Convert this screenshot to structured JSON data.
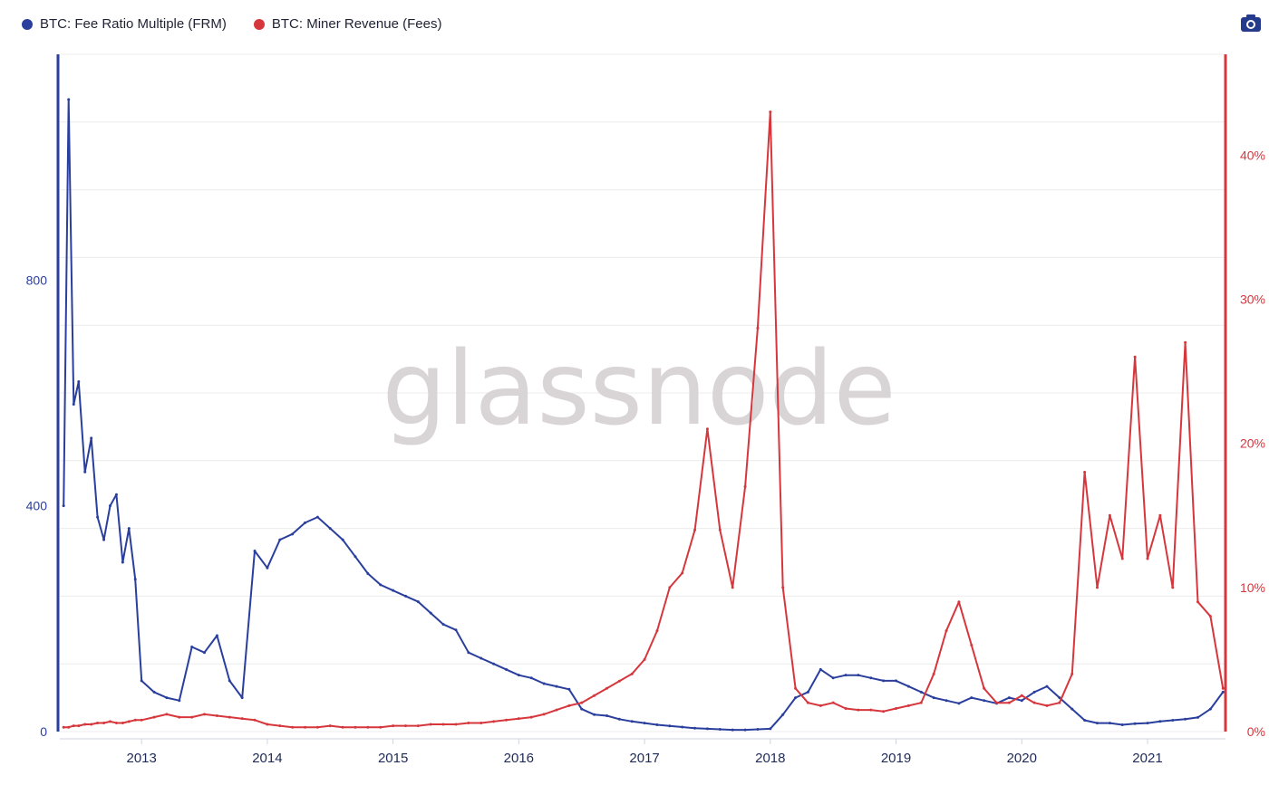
{
  "legend": {
    "items": [
      {
        "label": "BTC: Fee Ratio Multiple (FRM)",
        "color": "#2a3f9d"
      },
      {
        "label": "BTC: Miner Revenue (Fees)",
        "color": "#d5373d"
      }
    ]
  },
  "toolbar": {
    "icon": "camera-icon"
  },
  "watermark": "glassnode",
  "chart_data": {
    "type": "line",
    "title": "",
    "grid": true,
    "legend_placement": "top-left",
    "x_axis": {
      "range": [
        2012.35,
        2021.62
      ],
      "ticks": [
        {
          "value": 2013,
          "label": "2013"
        },
        {
          "value": 2014,
          "label": "2014"
        },
        {
          "value": 2015,
          "label": "2015"
        },
        {
          "value": 2016,
          "label": "2016"
        },
        {
          "value": 2017,
          "label": "2017"
        },
        {
          "value": 2018,
          "label": "2018"
        },
        {
          "value": 2019,
          "label": "2019"
        },
        {
          "value": 2020,
          "label": "2020"
        },
        {
          "value": 2021,
          "label": "2021"
        }
      ]
    },
    "y_axes": [
      {
        "side": "left",
        "color": "#2a3f9d",
        "range": [
          0,
          1200
        ],
        "ticks": [
          {
            "value": 0,
            "label": "0"
          },
          {
            "value": 400,
            "label": "400"
          },
          {
            "value": 800,
            "label": "800"
          }
        ]
      },
      {
        "side": "right",
        "color": "#d5373d",
        "range": [
          0,
          47
        ],
        "unit": "%",
        "ticks": [
          {
            "value": 0,
            "label": "0%"
          },
          {
            "value": 10,
            "label": "10%"
          },
          {
            "value": 20,
            "label": "20%"
          },
          {
            "value": 30,
            "label": "30%"
          },
          {
            "value": 40,
            "label": "40%"
          }
        ]
      }
    ],
    "series": [
      {
        "name": "BTC: Fee Ratio Multiple (FRM)",
        "color": "#2a3f9d",
        "axis": "left",
        "x": [
          2012.38,
          2012.42,
          2012.46,
          2012.5,
          2012.55,
          2012.6,
          2012.65,
          2012.7,
          2012.75,
          2012.8,
          2012.85,
          2012.9,
          2012.95,
          2013.0,
          2013.1,
          2013.2,
          2013.3,
          2013.4,
          2013.5,
          2013.6,
          2013.7,
          2013.8,
          2013.9,
          2014.0,
          2014.1,
          2014.2,
          2014.3,
          2014.4,
          2014.5,
          2014.6,
          2014.7,
          2014.8,
          2014.9,
          2015.0,
          2015.1,
          2015.2,
          2015.3,
          2015.4,
          2015.5,
          2015.6,
          2015.7,
          2015.8,
          2015.9,
          2016.0,
          2016.1,
          2016.2,
          2016.3,
          2016.4,
          2016.5,
          2016.6,
          2016.7,
          2016.8,
          2016.9,
          2017.0,
          2017.1,
          2017.2,
          2017.3,
          2017.4,
          2017.5,
          2017.6,
          2017.7,
          2017.8,
          2017.9,
          2018.0,
          2018.1,
          2018.2,
          2018.3,
          2018.4,
          2018.5,
          2018.6,
          2018.7,
          2018.8,
          2018.9,
          2019.0,
          2019.1,
          2019.2,
          2019.3,
          2019.4,
          2019.5,
          2019.6,
          2019.7,
          2019.8,
          2019.9,
          2020.0,
          2020.1,
          2020.2,
          2020.3,
          2020.4,
          2020.5,
          2020.6,
          2020.7,
          2020.8,
          2020.9,
          2021.0,
          2021.1,
          2021.2,
          2021.3,
          2021.4,
          2021.5,
          2021.6
        ],
        "values": [
          400,
          1120,
          580,
          620,
          460,
          520,
          380,
          340,
          400,
          420,
          300,
          360,
          270,
          90,
          70,
          60,
          55,
          150,
          140,
          170,
          90,
          60,
          320,
          290,
          340,
          350,
          370,
          380,
          360,
          340,
          310,
          280,
          260,
          250,
          240,
          230,
          210,
          190,
          180,
          140,
          130,
          120,
          110,
          100,
          95,
          85,
          80,
          75,
          40,
          30,
          28,
          22,
          18,
          15,
          12,
          10,
          8,
          6,
          5,
          4,
          3,
          3,
          4,
          5,
          30,
          60,
          70,
          110,
          95,
          100,
          100,
          95,
          90,
          90,
          80,
          70,
          60,
          55,
          50,
          60,
          55,
          50,
          60,
          55,
          70,
          80,
          60,
          40,
          20,
          15,
          15,
          12,
          14,
          15,
          18,
          20,
          22,
          25,
          40,
          70
        ]
      },
      {
        "name": "BTC: Miner Revenue (Fees)",
        "color": "#d5373d",
        "axis": "right",
        "x": [
          2012.38,
          2012.42,
          2012.46,
          2012.5,
          2012.55,
          2012.6,
          2012.65,
          2012.7,
          2012.75,
          2012.8,
          2012.85,
          2012.9,
          2012.95,
          2013.0,
          2013.1,
          2013.2,
          2013.3,
          2013.4,
          2013.5,
          2013.6,
          2013.7,
          2013.8,
          2013.9,
          2014.0,
          2014.1,
          2014.2,
          2014.3,
          2014.4,
          2014.5,
          2014.6,
          2014.7,
          2014.8,
          2014.9,
          2015.0,
          2015.1,
          2015.2,
          2015.3,
          2015.4,
          2015.5,
          2015.6,
          2015.7,
          2015.8,
          2015.9,
          2016.0,
          2016.1,
          2016.2,
          2016.3,
          2016.4,
          2016.5,
          2016.6,
          2016.7,
          2016.8,
          2016.9,
          2017.0,
          2017.1,
          2017.2,
          2017.3,
          2017.4,
          2017.5,
          2017.6,
          2017.7,
          2017.8,
          2017.9,
          2018.0,
          2018.1,
          2018.2,
          2018.3,
          2018.4,
          2018.5,
          2018.6,
          2018.7,
          2018.8,
          2018.9,
          2019.0,
          2019.1,
          2019.2,
          2019.3,
          2019.4,
          2019.5,
          2019.6,
          2019.7,
          2019.8,
          2019.9,
          2020.0,
          2020.1,
          2020.2,
          2020.3,
          2020.4,
          2020.5,
          2020.6,
          2020.7,
          2020.8,
          2020.9,
          2021.0,
          2021.1,
          2021.2,
          2021.3,
          2021.4,
          2021.5,
          2021.6
        ],
        "values": [
          0.3,
          0.3,
          0.4,
          0.4,
          0.5,
          0.5,
          0.6,
          0.6,
          0.7,
          0.6,
          0.6,
          0.7,
          0.8,
          0.8,
          1.0,
          1.2,
          1.0,
          1.0,
          1.2,
          1.1,
          1.0,
          0.9,
          0.8,
          0.5,
          0.4,
          0.3,
          0.3,
          0.3,
          0.4,
          0.3,
          0.3,
          0.3,
          0.3,
          0.4,
          0.4,
          0.4,
          0.5,
          0.5,
          0.5,
          0.6,
          0.6,
          0.7,
          0.8,
          0.9,
          1.0,
          1.2,
          1.5,
          1.8,
          2.0,
          2.5,
          3.0,
          3.5,
          4.0,
          5.0,
          7.0,
          10.0,
          11.0,
          14.0,
          21.0,
          14.0,
          10.0,
          17.0,
          28.0,
          43.0,
          10.0,
          3.0,
          2.0,
          1.8,
          2.0,
          1.6,
          1.5,
          1.5,
          1.4,
          1.6,
          1.8,
          2.0,
          4.0,
          7.0,
          9.0,
          6.0,
          3.0,
          2.0,
          2.0,
          2.5,
          2.0,
          1.8,
          2.0,
          4.0,
          18.0,
          10.0,
          15.0,
          12.0,
          26.0,
          12.0,
          15.0,
          10.0,
          27.0,
          9.0,
          8.0,
          3.0
        ]
      }
    ]
  }
}
